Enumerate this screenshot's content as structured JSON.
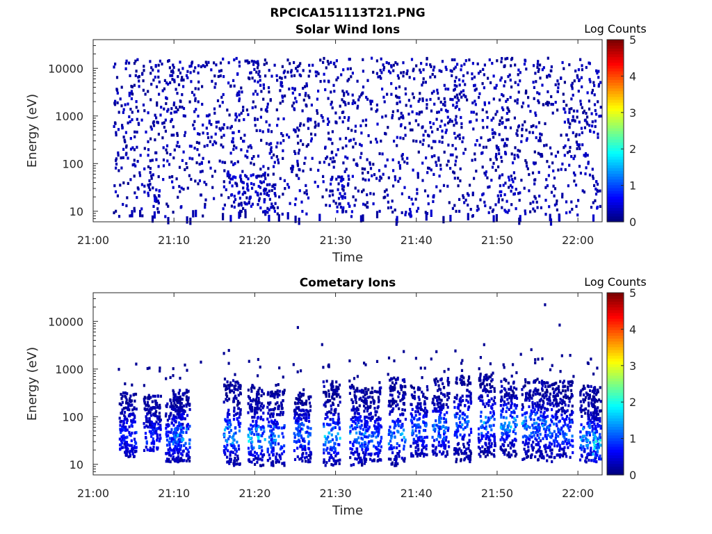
{
  "figure": {
    "title": "RPCICA151113T21.PNG"
  },
  "chart_data": [
    {
      "type": "heatmap",
      "title": "Solar Wind Ions",
      "xlabel": "Time",
      "ylabel": "Energy (eV)",
      "y_scale": "log",
      "ylim": [
        6,
        40000
      ],
      "xlim": [
        "21:00",
        "22:03"
      ],
      "x_ticks": [
        "21:00",
        "21:10",
        "21:20",
        "21:30",
        "21:40",
        "21:50",
        "22:00"
      ],
      "y_ticks": [
        "10",
        "100",
        "1000",
        "10000"
      ],
      "colorbar": {
        "label": "Log Counts",
        "ticks": [
          "0",
          "1",
          "2",
          "3",
          "4",
          "5"
        ],
        "range": [
          0,
          5
        ],
        "colormap": "jet"
      },
      "intensity_profile": "sparse single-count pixels spread 10 eV – 15000 eV across 21:02–22:03, denser streaks 10–100 eV near 21:17–21:22 and 21:29–21:33",
      "max_log_counts": 0.6
    },
    {
      "type": "heatmap",
      "title": "Cometary Ions",
      "xlabel": "Time",
      "ylabel": "Energy (eV)",
      "y_scale": "log",
      "ylim": [
        6,
        40000
      ],
      "xlim": [
        "21:00",
        "22:03"
      ],
      "x_ticks": [
        "21:00",
        "21:10",
        "21:20",
        "21:30",
        "21:40",
        "21:50",
        "22:00"
      ],
      "y_ticks": [
        "10",
        "100",
        "1000",
        "10000"
      ],
      "colorbar": {
        "label": "Log Counts",
        "ticks": [
          "0",
          "1",
          "2",
          "3",
          "4",
          "5"
        ],
        "range": [
          0,
          5
        ],
        "colormap": "jet"
      },
      "bursts": [
        {
          "t": 21.07,
          "elo": 15,
          "ehi": 350,
          "peak_e": 45,
          "peak": 0.8
        },
        {
          "t": 21.12,
          "elo": 20,
          "ehi": 300,
          "peak_e": 40,
          "peak": 0.7
        },
        {
          "t": 21.165,
          "elo": 12,
          "ehi": 250,
          "peak_e": 40,
          "peak": 0.9
        },
        {
          "t": 21.18,
          "elo": 12,
          "ehi": 400,
          "peak_e": 45,
          "peak": 1.3
        },
        {
          "t": 21.285,
          "elo": 10,
          "ehi": 700,
          "peak_e": 45,
          "peak": 1.4
        },
        {
          "t": 21.335,
          "elo": 10,
          "ehi": 500,
          "peak_e": 40,
          "peak": 1.6
        },
        {
          "t": 21.375,
          "elo": 10,
          "ehi": 400,
          "peak_e": 40,
          "peak": 1.2
        },
        {
          "t": 21.43,
          "elo": 12,
          "ehi": 350,
          "peak_e": 45,
          "peak": 1.2
        },
        {
          "t": 21.49,
          "elo": 10,
          "ehi": 600,
          "peak_e": 40,
          "peak": 1.5
        },
        {
          "t": 21.545,
          "elo": 10,
          "ehi": 500,
          "peak_e": 45,
          "peak": 1.3
        },
        {
          "t": 21.575,
          "elo": 12,
          "ehi": 450,
          "peak_e": 40,
          "peak": 1.0
        },
        {
          "t": 21.625,
          "elo": 10,
          "ehi": 700,
          "peak_e": 45,
          "peak": 1.3
        },
        {
          "t": 21.67,
          "elo": 15,
          "ehi": 500,
          "peak_e": 60,
          "peak": 1.1
        },
        {
          "t": 21.715,
          "elo": 15,
          "ehi": 700,
          "peak_e": 60,
          "peak": 1.2
        },
        {
          "t": 21.76,
          "elo": 12,
          "ehi": 800,
          "peak_e": 80,
          "peak": 1.2
        },
        {
          "t": 21.81,
          "elo": 15,
          "ehi": 900,
          "peak_e": 80,
          "peak": 1.3
        },
        {
          "t": 21.855,
          "elo": 15,
          "ehi": 800,
          "peak_e": 80,
          "peak": 1.5
        },
        {
          "t": 21.9,
          "elo": 12,
          "ehi": 700,
          "peak_e": 70,
          "peak": 1.3
        },
        {
          "t": 21.935,
          "elo": 12,
          "ehi": 600,
          "peak_e": 60,
          "peak": 1.2
        },
        {
          "t": 21.97,
          "elo": 15,
          "ehi": 600,
          "peak_e": 50,
          "peak": 1.1
        },
        {
          "t": 22.02,
          "elo": 12,
          "ehi": 500,
          "peak_e": 40,
          "peak": 1.4
        },
        {
          "t": 22.045,
          "elo": 12,
          "ehi": 450,
          "peak_e": 30,
          "peak": 1.8
        }
      ],
      "max_log_counts": 1.8
    }
  ]
}
